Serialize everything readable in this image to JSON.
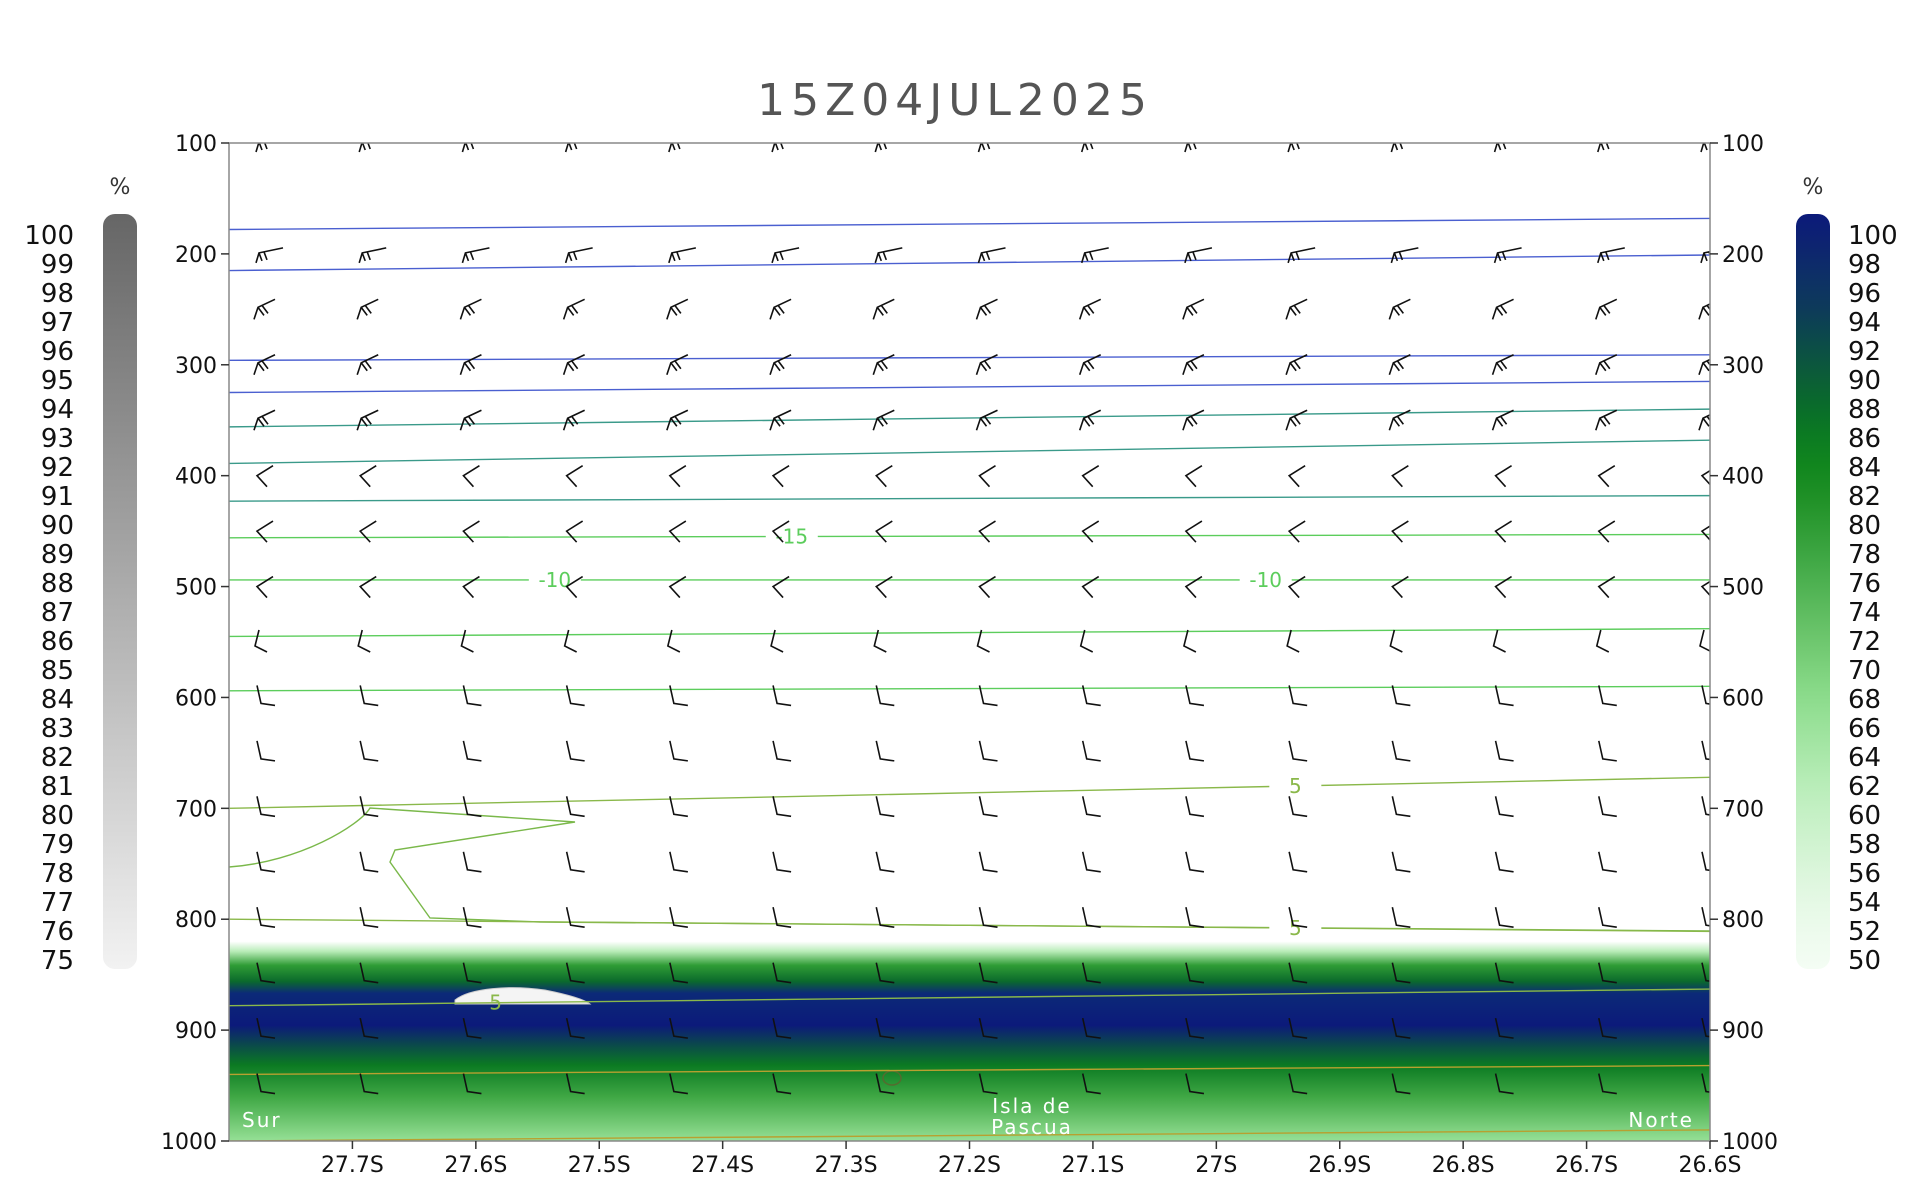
{
  "title": "15Z04JUL2025",
  "chart_data": {
    "type": "heatmap",
    "title": "15Z04JUL2025",
    "x_tick_labels": [
      "27.7S",
      "27.6S",
      "27.5S",
      "27.4S",
      "27.3S",
      "27.2S",
      "27.1S",
      "27S",
      "26.9S",
      "26.8S",
      "26.7S",
      "26.6S"
    ],
    "x_range": [
      27.8,
      26.6
    ],
    "y_tick_labels": [
      "100",
      "200",
      "300",
      "400",
      "500",
      "600",
      "700",
      "800",
      "900",
      "1000"
    ],
    "y_range": [
      1000,
      100
    ],
    "y_axis_direction": "pressure decreasing upward (hPa)",
    "grid": false,
    "left_colorbar": {
      "unit": "%",
      "labels": [
        "100",
        "99",
        "98",
        "97",
        "96",
        "95",
        "94",
        "93",
        "92",
        "91",
        "90",
        "89",
        "88",
        "87",
        "86",
        "85",
        "84",
        "83",
        "82",
        "81",
        "80",
        "79",
        "78",
        "77",
        "76",
        "75"
      ],
      "color_top": "#666666",
      "color_bottom": "#f2f2f2"
    },
    "right_colorbar": {
      "unit": "%",
      "labels": [
        "100",
        "98",
        "96",
        "94",
        "92",
        "90",
        "88",
        "86",
        "84",
        "82",
        "80",
        "78",
        "76",
        "74",
        "72",
        "70",
        "68",
        "66",
        "64",
        "62",
        "60",
        "58",
        "56",
        "54",
        "52",
        "50"
      ],
      "colors": [
        "#0c1a7a",
        "#0d2470",
        "#0d3066",
        "#0d3a5a",
        "#0c4a4a",
        "#0c5a3a",
        "#0a6a2c",
        "#0b7a22",
        "#11861e",
        "#1f9026",
        "#2f9c35",
        "#40a845",
        "#52b455",
        "#64c065",
        "#75cc75",
        "#86d886",
        "#96e096",
        "#a6e6a6",
        "#b6ecb6",
        "#c4f0c4",
        "#d0f3d0",
        "#dcf6dc",
        "#e6f9e6",
        "#eefbee",
        "#f4fdf4"
      ]
    },
    "humidity_band": {
      "p_top": 820,
      "p_core_top": 850,
      "p_core_bottom": 890,
      "p_bottom": 1000,
      "core_value_pct": 100,
      "edge_value_pct": 60
    },
    "isotherms": [
      {
        "label": "-15",
        "p": [
          456,
          453
        ]
      },
      {
        "label": "-10",
        "p": [
          494,
          494
        ]
      },
      {
        "label": "5",
        "p": [
          700,
          672
        ]
      },
      {
        "label": "5",
        "p": [
          800,
          811
        ]
      },
      {
        "label": "5",
        "p": [
          878,
          863
        ]
      },
      {
        "label": "",
        "p": [
          178,
          168
        ]
      },
      {
        "label": "",
        "p": [
          215,
          201
        ]
      },
      {
        "label": "",
        "p": [
          296,
          291
        ]
      },
      {
        "label": "",
        "p": [
          325,
          315
        ]
      },
      {
        "label": "",
        "p": [
          356,
          340
        ]
      },
      {
        "label": "",
        "p": [
          389,
          368
        ]
      },
      {
        "label": "",
        "p": [
          423,
          418
        ]
      },
      {
        "label": "",
        "p": [
          545,
          538
        ]
      },
      {
        "label": "",
        "p": [
          594,
          590
        ]
      },
      {
        "label": "",
        "p": [
          940,
          932
        ]
      },
      {
        "label": "",
        "p": [
          1000,
          990
        ]
      }
    ],
    "wind_barb_levels": [
      100,
      200,
      250,
      300,
      350,
      400,
      450,
      500,
      550,
      600,
      650,
      700,
      750,
      800,
      850,
      900,
      950
    ],
    "annotations": [
      {
        "text": "Sur",
        "position": "bottom-left"
      },
      {
        "text": "Isla de",
        "position": "bottom-center"
      },
      {
        "text": "Pascua",
        "position": "bottom-center"
      },
      {
        "text": "Norte",
        "position": "bottom-right"
      }
    ]
  }
}
